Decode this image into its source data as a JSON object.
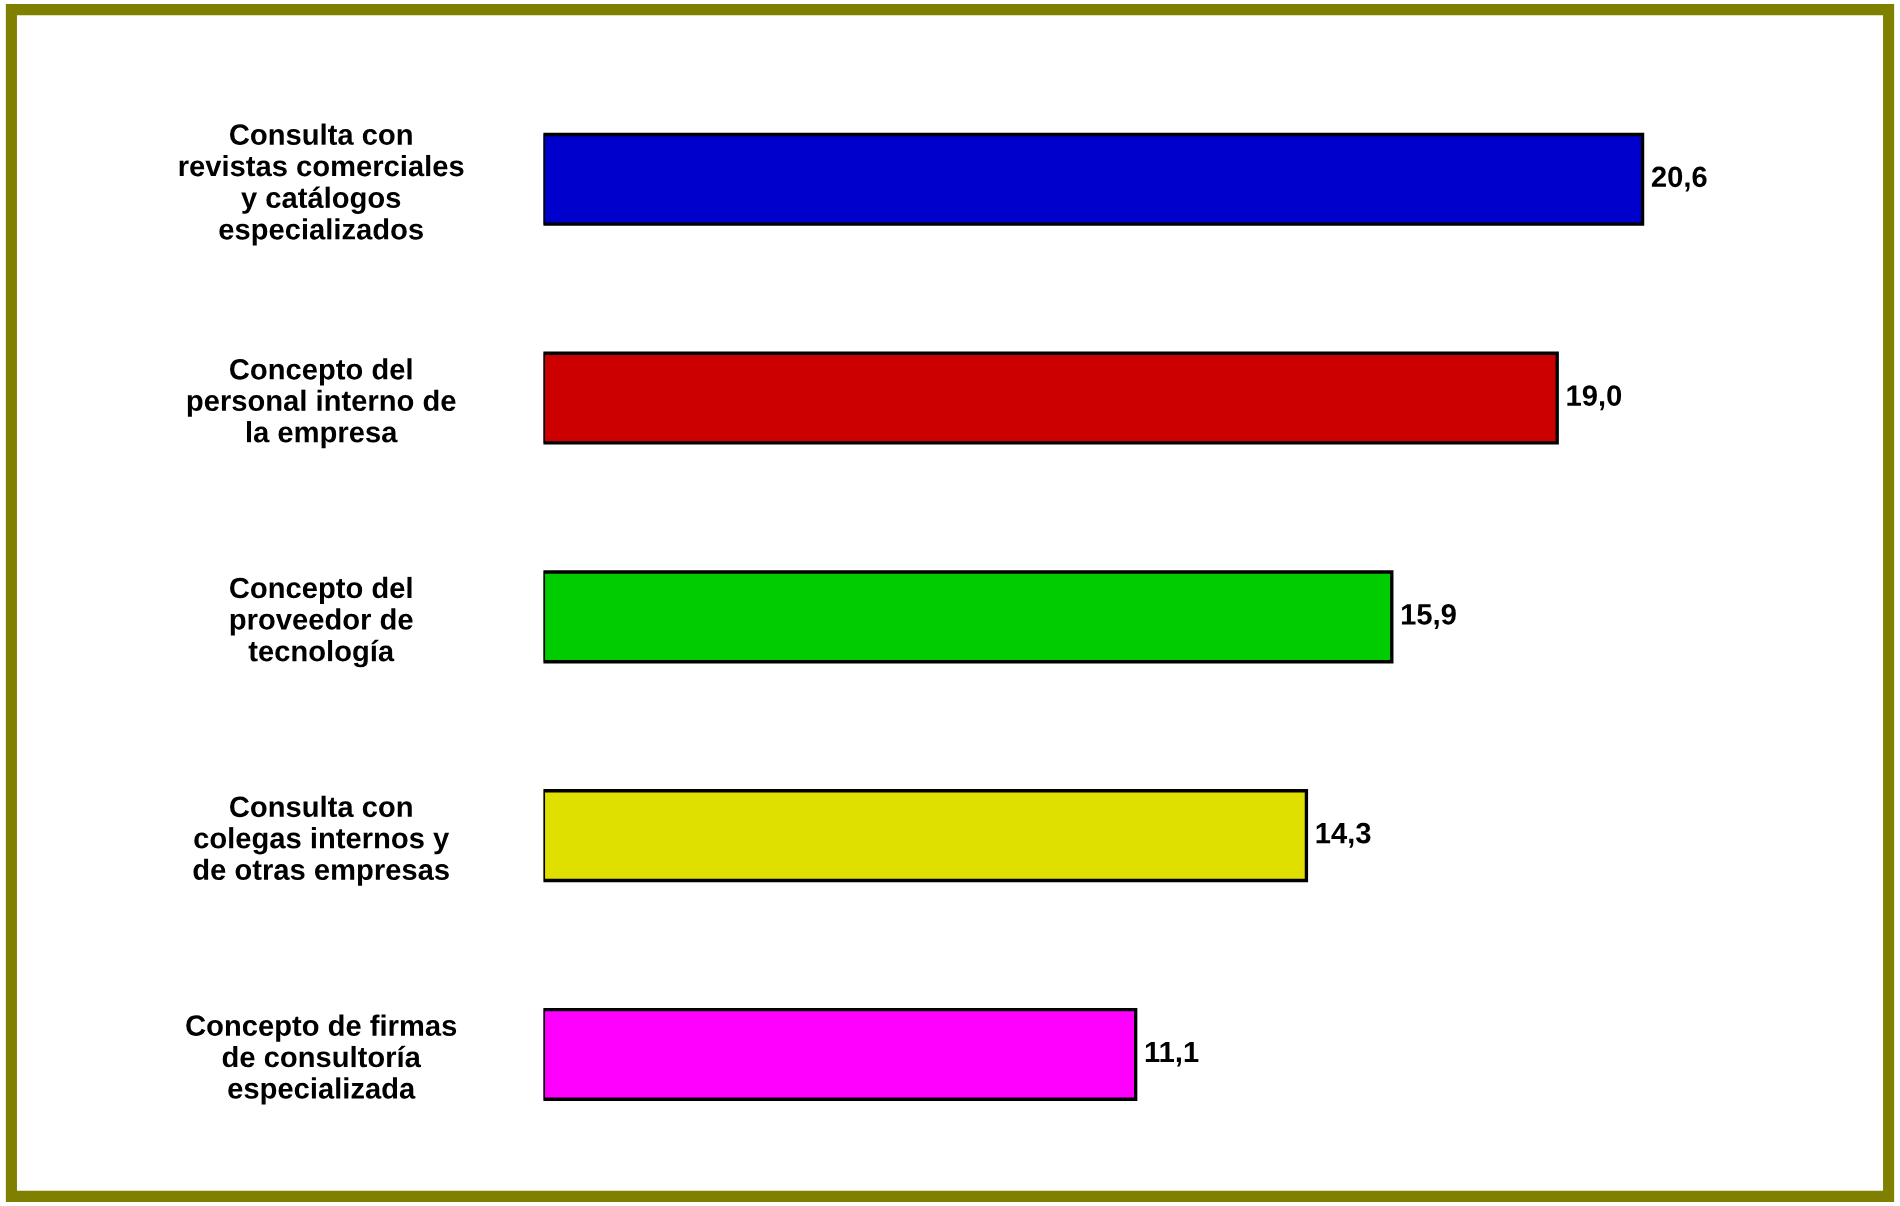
{
  "chart_data": {
    "type": "bar",
    "orientation": "horizontal",
    "categories": [
      "Consulta con\nrevistas comerciales\ny catálogos\nespecializados",
      "Concepto del\npersonal interno de\nla empresa",
      "Concepto del\nproveedor de\ntecnología",
      "Consulta con\ncolegas internos y\nde otras empresas",
      "Concepto de firmas\nde consultoría\nespecializada"
    ],
    "values": [
      20.6,
      19.0,
      15.9,
      14.3,
      11.1
    ],
    "colors": [
      "#0000cc",
      "#cc0000",
      "#00cc00",
      "#e0e000",
      "#ff00ff"
    ],
    "value_labels": [
      "20,6",
      "19,0",
      "15,9",
      "14,3",
      "11,1"
    ],
    "tick_labels": "y",
    "grid": false,
    "legend": false
  }
}
